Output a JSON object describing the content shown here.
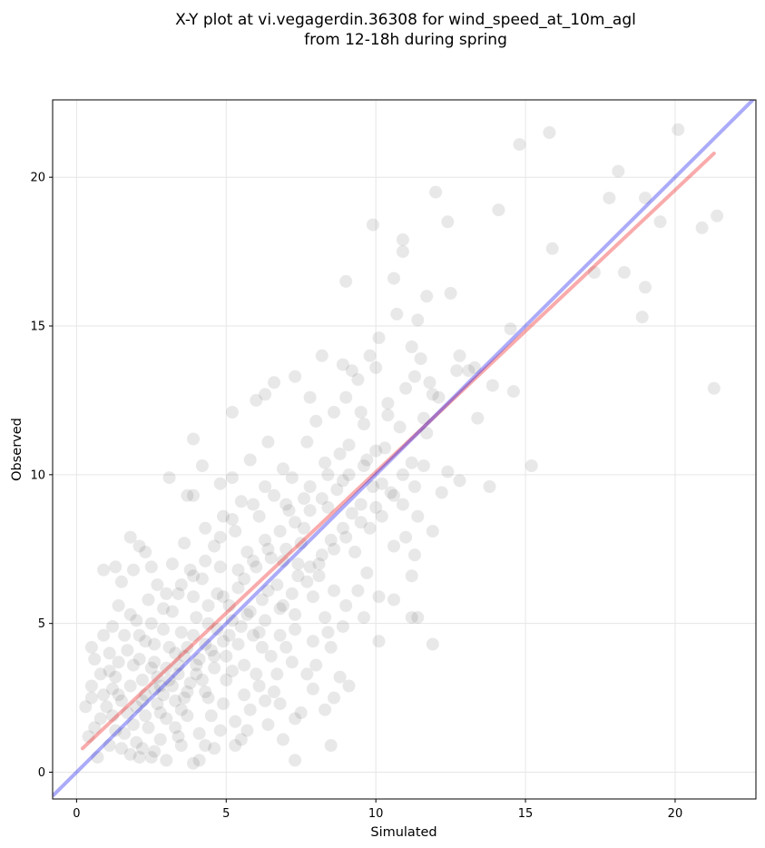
{
  "chart_data": {
    "type": "scatter",
    "title_line1": "X-Y plot at vi.vegagerdin.36308 for wind_speed_at_10m_agl",
    "title_line2": "from 12-18h during spring",
    "xlabel": "Simulated",
    "ylabel": "Observed",
    "xlim": [
      -0.8,
      22.7
    ],
    "ylim": [
      -0.9,
      22.6
    ],
    "xticks": [
      0,
      5,
      10,
      15,
      20
    ],
    "yticks": [
      0,
      5,
      10,
      15,
      20
    ],
    "xtick_labels": [
      "0",
      "5",
      "10",
      "15",
      "20"
    ],
    "ytick_labels": [
      "0",
      "5",
      "10",
      "15",
      "20"
    ],
    "grid": true,
    "point_color": "#000000",
    "identity_line": {
      "color": "#0000ee",
      "from": [
        -0.8,
        -0.8
      ],
      "to": [
        22.7,
        22.7
      ]
    },
    "fit_line": {
      "color": "#ee0000",
      "from": [
        0.2,
        0.8
      ],
      "to": [
        21.3,
        20.8
      ]
    },
    "points": [
      [
        14.8,
        21.1
      ],
      [
        15.8,
        21.5
      ],
      [
        20.1,
        21.6
      ],
      [
        18.1,
        20.2
      ],
      [
        17.8,
        19.3
      ],
      [
        19.0,
        19.3
      ],
      [
        19.5,
        18.5
      ],
      [
        21.4,
        18.7
      ],
      [
        20.9,
        18.3
      ],
      [
        18.3,
        16.8
      ],
      [
        19.0,
        16.3
      ],
      [
        18.9,
        15.3
      ],
      [
        21.3,
        12.9
      ],
      [
        15.9,
        17.6
      ],
      [
        17.3,
        16.8
      ],
      [
        14.5,
        14.9
      ],
      [
        14.6,
        12.8
      ],
      [
        15.2,
        10.3
      ],
      [
        14.1,
        18.9
      ],
      [
        12.4,
        18.5
      ],
      [
        12.0,
        19.5
      ],
      [
        9.9,
        18.4
      ],
      [
        10.9,
        17.9
      ],
      [
        10.9,
        17.5
      ],
      [
        10.6,
        16.6
      ],
      [
        9.0,
        16.5
      ],
      [
        12.5,
        16.1
      ],
      [
        11.7,
        16.0
      ],
      [
        10.7,
        15.4
      ],
      [
        11.4,
        15.2
      ],
      [
        13.3,
        13.6
      ],
      [
        12.8,
        14.0
      ],
      [
        12.7,
        13.5
      ],
      [
        13.1,
        13.5
      ],
      [
        13.9,
        13.0
      ],
      [
        12.1,
        12.6
      ],
      [
        13.4,
        11.9
      ],
      [
        13.8,
        9.6
      ],
      [
        12.8,
        9.8
      ],
      [
        12.2,
        9.4
      ],
      [
        12.4,
        10.1
      ],
      [
        11.9,
        8.1
      ],
      [
        11.7,
        11.4
      ],
      [
        11.6,
        11.9
      ],
      [
        11.9,
        12.7
      ],
      [
        11.8,
        13.1
      ],
      [
        11.3,
        13.3
      ],
      [
        11.5,
        13.9
      ],
      [
        11.2,
        14.3
      ],
      [
        10.1,
        14.6
      ],
      [
        10.0,
        13.6
      ],
      [
        9.8,
        14.0
      ],
      [
        9.2,
        13.5
      ],
      [
        9.4,
        13.2
      ],
      [
        11.0,
        12.9
      ],
      [
        11.2,
        10.4
      ],
      [
        11.4,
        8.6
      ],
      [
        11.3,
        7.3
      ],
      [
        11.2,
        6.6
      ],
      [
        11.2,
        5.2
      ],
      [
        11.4,
        5.2
      ],
      [
        11.9,
        4.3
      ],
      [
        10.1,
        4.4
      ],
      [
        10.6,
        5.8
      ],
      [
        9.6,
        5.2
      ],
      [
        8.9,
        4.9
      ],
      [
        8.5,
        4.2
      ],
      [
        8.8,
        3.2
      ],
      [
        9.1,
        2.9
      ],
      [
        8.6,
        2.5
      ],
      [
        8.3,
        2.1
      ],
      [
        7.9,
        2.8
      ],
      [
        7.7,
        3.3
      ],
      [
        7.5,
        2.0
      ],
      [
        7.3,
        1.8
      ],
      [
        6.8,
        2.3
      ],
      [
        6.3,
        2.4
      ],
      [
        6.9,
        1.1
      ],
      [
        7.3,
        0.4
      ],
      [
        8.5,
        0.9
      ],
      [
        5.5,
        1.1
      ],
      [
        5.3,
        0.9
      ],
      [
        4.6,
        0.8
      ],
      [
        4.1,
        0.4
      ],
      [
        3.9,
        0.3
      ],
      [
        3.5,
        0.9
      ],
      [
        3.0,
        0.4
      ],
      [
        2.5,
        0.5
      ],
      [
        2.1,
        0.5
      ],
      [
        1.8,
        0.6
      ],
      [
        1.5,
        0.8
      ],
      [
        0.7,
        0.5
      ],
      [
        0.6,
        1.5
      ],
      [
        0.4,
        1.2
      ],
      [
        0.3,
        2.2
      ],
      [
        0.5,
        2.9
      ],
      [
        0.8,
        3.3
      ],
      [
        0.6,
        3.8
      ],
      [
        0.5,
        4.2
      ],
      [
        0.9,
        4.6
      ],
      [
        1.2,
        4.9
      ],
      [
        1.4,
        5.6
      ],
      [
        1.8,
        5.3
      ],
      [
        1.5,
        6.4
      ],
      [
        1.9,
        6.8
      ],
      [
        1.3,
        6.9
      ],
      [
        0.9,
        6.8
      ],
      [
        2.1,
        7.6
      ],
      [
        1.8,
        7.9
      ],
      [
        2.3,
        7.4
      ],
      [
        3.1,
        9.9
      ],
      [
        3.7,
        9.3
      ],
      [
        3.9,
        9.3
      ],
      [
        3.9,
        11.2
      ],
      [
        4.2,
        10.3
      ],
      [
        4.8,
        9.7
      ],
      [
        5.2,
        9.9
      ],
      [
        5.2,
        12.1
      ],
      [
        6.0,
        12.5
      ],
      [
        6.3,
        12.7
      ],
      [
        6.6,
        13.1
      ],
      [
        7.3,
        13.3
      ],
      [
        7.8,
        12.6
      ],
      [
        8.2,
        14.0
      ],
      [
        8.9,
        13.7
      ],
      [
        9.5,
        12.1
      ],
      [
        10.4,
        12.4
      ],
      [
        10.2,
        9.7
      ],
      [
        10.6,
        9.3
      ],
      [
        10.9,
        10.0
      ],
      [
        1.3,
        3.2
      ],
      [
        1.8,
        2.9
      ],
      [
        2.1,
        3.8
      ],
      [
        2.6,
        4.3
      ],
      [
        2.2,
        2.4
      ],
      [
        2.8,
        2.0
      ],
      [
        3.1,
        3.1
      ],
      [
        3.4,
        3.6
      ],
      [
        3.6,
        2.5
      ],
      [
        2.9,
        4.8
      ],
      [
        3.7,
        4.2
      ],
      [
        4.0,
        3.3
      ],
      [
        4.3,
        2.7
      ],
      [
        4.6,
        3.9
      ],
      [
        3.2,
        5.4
      ],
      [
        3.9,
        5.9
      ],
      [
        4.4,
        5.0
      ],
      [
        4.9,
        4.4
      ],
      [
        5.2,
        3.4
      ],
      [
        5.5,
        4.9
      ],
      [
        4.2,
        6.5
      ],
      [
        4.8,
        6.9
      ],
      [
        5.4,
        6.2
      ],
      [
        5.8,
        5.4
      ],
      [
        6.1,
        4.7
      ],
      [
        6.5,
        3.9
      ],
      [
        6.4,
        6.1
      ],
      [
        6.9,
        5.6
      ],
      [
        7.3,
        4.8
      ],
      [
        5.7,
        7.4
      ],
      [
        6.3,
        7.8
      ],
      [
        6.9,
        7.1
      ],
      [
        7.4,
        6.6
      ],
      [
        7.9,
        5.9
      ],
      [
        8.3,
        5.2
      ],
      [
        8.2,
        7.3
      ],
      [
        7.6,
        8.2
      ],
      [
        7.1,
        8.8
      ],
      [
        6.6,
        9.3
      ],
      [
        7.8,
        9.6
      ],
      [
        8.4,
        8.9
      ],
      [
        8.9,
        8.2
      ],
      [
        9.3,
        7.4
      ],
      [
        9.7,
        6.7
      ],
      [
        10.1,
        5.9
      ],
      [
        9.5,
        9.0
      ],
      [
        8.9,
        9.8
      ],
      [
        8.3,
        10.4
      ],
      [
        7.7,
        11.1
      ],
      [
        9.1,
        11.0
      ],
      [
        9.7,
        10.5
      ],
      [
        10.3,
        10.9
      ],
      [
        10.8,
        11.6
      ],
      [
        10.4,
        12.0
      ],
      [
        9.6,
        11.7
      ],
      [
        8.6,
        12.1
      ],
      [
        8.0,
        11.8
      ],
      [
        6.4,
        11.1
      ],
      [
        5.8,
        10.5
      ],
      [
        6.9,
        10.2
      ],
      [
        5.5,
        9.1
      ],
      [
        4.9,
        8.6
      ],
      [
        4.3,
        8.2
      ],
      [
        3.6,
        7.7
      ],
      [
        3.2,
        7.0
      ],
      [
        2.7,
        6.3
      ],
      [
        2.4,
        5.8
      ],
      [
        2.0,
        5.1
      ],
      [
        1.6,
        4.6
      ],
      [
        1.1,
        4.0
      ],
      [
        0.9,
        2.6
      ],
      [
        1.2,
        1.9
      ],
      [
        1.6,
        1.3
      ],
      [
        2.0,
        1.0
      ],
      [
        2.4,
        1.5
      ],
      [
        2.8,
        1.1
      ],
      [
        3.3,
        1.5
      ],
      [
        3.7,
        1.9
      ],
      [
        4.1,
        1.3
      ],
      [
        4.5,
        1.9
      ],
      [
        4.9,
        2.3
      ],
      [
        5.3,
        1.7
      ],
      [
        5.8,
        2.1
      ],
      [
        6.1,
        2.9
      ],
      [
        6.7,
        3.3
      ],
      [
        7.2,
        3.7
      ],
      [
        5.1,
        5.6
      ],
      [
        4.7,
        6.0
      ],
      [
        3.5,
        6.3
      ],
      [
        2.5,
        6.9
      ],
      [
        7.5,
        7.7
      ],
      [
        8.1,
        6.6
      ],
      [
        8.6,
        6.1
      ],
      [
        9.0,
        5.6
      ],
      [
        9.4,
        6.1
      ],
      [
        9.8,
        8.2
      ],
      [
        10.2,
        8.6
      ],
      [
        10.6,
        7.6
      ],
      [
        11.0,
        7.9
      ],
      [
        9.0,
        12.6
      ],
      [
        7.2,
        9.9
      ],
      [
        6.1,
        8.6
      ],
      [
        5.3,
        8.1
      ],
      [
        4.6,
        7.6
      ],
      [
        3.8,
        6.8
      ],
      [
        3.0,
        6.0
      ],
      [
        2.3,
        4.4
      ],
      [
        1.9,
        3.6
      ],
      [
        2.6,
        2.8
      ],
      [
        3.5,
        2.1
      ],
      [
        4.4,
        2.5
      ],
      [
        5.0,
        3.1
      ],
      [
        5.6,
        3.6
      ],
      [
        6.2,
        4.2
      ],
      [
        6.8,
        4.6
      ],
      [
        7.3,
        5.3
      ],
      [
        7.8,
        6.9
      ],
      [
        8.5,
        7.8
      ],
      [
        9.2,
        8.7
      ],
      [
        9.9,
        9.6
      ],
      [
        3.3,
        4.0
      ],
      [
        3.0,
        3.5
      ],
      [
        2.7,
        3.2
      ],
      [
        3.6,
        3.9
      ],
      [
        3.9,
        4.6
      ],
      [
        4.3,
        4.3
      ],
      [
        2.5,
        3.5
      ],
      [
        2.9,
        2.6
      ],
      [
        3.2,
        2.9
      ],
      [
        3.8,
        3.0
      ],
      [
        4.1,
        3.8
      ],
      [
        4.7,
        4.8
      ],
      [
        5.2,
        5.1
      ],
      [
        5.6,
        6.5
      ],
      [
        6.0,
        6.9
      ],
      [
        6.5,
        7.2
      ],
      [
        7.0,
        7.5
      ],
      [
        7.4,
        7.0
      ],
      [
        6.7,
        6.3
      ],
      [
        6.2,
        5.8
      ],
      [
        5.7,
        5.3
      ],
      [
        5.1,
        4.6
      ],
      [
        4.5,
        4.1
      ],
      [
        4.0,
        3.6
      ],
      [
        3.4,
        3.3
      ],
      [
        2.8,
        2.9
      ],
      [
        2.3,
        2.6
      ],
      [
        2.0,
        2.2
      ],
      [
        1.7,
        2.0
      ],
      [
        1.4,
        2.6
      ],
      [
        2.2,
        3.1
      ],
      [
        2.6,
        3.7
      ],
      [
        3.1,
        4.2
      ],
      [
        3.5,
        4.7
      ],
      [
        4.0,
        5.2
      ],
      [
        4.4,
        5.6
      ],
      [
        4.9,
        5.9
      ],
      [
        5.4,
        6.8
      ],
      [
        5.9,
        7.1
      ],
      [
        6.4,
        7.5
      ],
      [
        6.8,
        8.1
      ],
      [
        7.3,
        8.4
      ],
      [
        7.8,
        8.8
      ],
      [
        8.2,
        9.2
      ],
      [
        8.7,
        9.5
      ],
      [
        9.1,
        10.0
      ],
      [
        9.6,
        10.3
      ],
      [
        10.0,
        10.8
      ],
      [
        8.8,
        10.7
      ],
      [
        8.4,
        10.0
      ],
      [
        7.6,
        9.2
      ],
      [
        7.0,
        9.0
      ],
      [
        6.3,
        9.6
      ],
      [
        5.9,
        9.0
      ],
      [
        5.2,
        8.5
      ],
      [
        4.8,
        7.9
      ],
      [
        4.3,
        7.1
      ],
      [
        3.9,
        6.6
      ],
      [
        3.4,
        6.0
      ],
      [
        2.9,
        5.5
      ],
      [
        2.5,
        5.0
      ],
      [
        2.1,
        4.6
      ],
      [
        1.7,
        4.1
      ],
      [
        1.4,
        3.7
      ],
      [
        1.1,
        3.4
      ],
      [
        1.0,
        2.2
      ],
      [
        1.3,
        1.4
      ],
      [
        1.9,
        1.6
      ],
      [
        2.3,
        1.9
      ],
      [
        2.7,
        2.3
      ],
      [
        3.3,
        2.4
      ],
      [
        3.7,
        2.7
      ],
      [
        4.2,
        3.1
      ],
      [
        4.6,
        3.5
      ],
      [
        5.0,
        3.9
      ],
      [
        5.4,
        4.3
      ],
      [
        5.9,
        4.6
      ],
      [
        6.3,
        5.1
      ],
      [
        6.8,
        5.5
      ],
      [
        7.2,
        6.0
      ],
      [
        7.7,
        6.4
      ],
      [
        8.1,
        7.0
      ],
      [
        8.6,
        7.5
      ],
      [
        9.0,
        7.9
      ],
      [
        9.5,
        8.4
      ],
      [
        10.0,
        8.9
      ],
      [
        10.5,
        9.4
      ],
      [
        10.9,
        9.0
      ],
      [
        11.3,
        9.6
      ],
      [
        11.6,
        10.3
      ],
      [
        3.0,
        1.8
      ],
      [
        3.4,
        1.2
      ],
      [
        2.2,
        0.8
      ],
      [
        2.6,
        0.7
      ],
      [
        4.8,
        1.4
      ],
      [
        5.6,
        2.6
      ],
      [
        6.0,
        3.3
      ],
      [
        6.6,
        2.7
      ],
      [
        7.0,
        4.2
      ],
      [
        7.9,
        4.4
      ],
      [
        8.4,
        4.7
      ],
      [
        8.0,
        3.6
      ],
      [
        6.4,
        1.6
      ],
      [
        5.7,
        1.4
      ],
      [
        4.3,
        0.9
      ],
      [
        1.1,
        0.9
      ],
      [
        0.8,
        1.8
      ],
      [
        0.5,
        2.5
      ],
      [
        1.5,
        2.4
      ],
      [
        1.2,
        2.8
      ]
    ]
  }
}
